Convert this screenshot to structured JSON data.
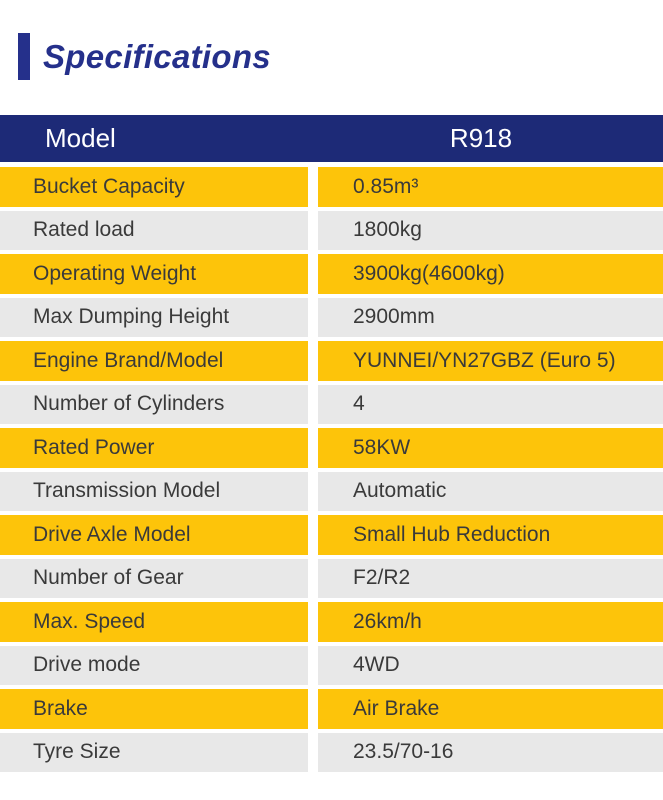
{
  "section_title": {
    "text": "Specifications",
    "accent_color": "#25308B"
  },
  "table": {
    "header": {
      "model_label": "Model",
      "model_value": "R918",
      "bg": "#1D2A77",
      "text_color": "#FFFFFF"
    },
    "row_colors": {
      "odd": "#FDC40A",
      "even": "#E8E8E8"
    },
    "body_text_color": "#3A3A3A",
    "rows": [
      {
        "label": "Bucket Capacity",
        "value": "0.85m³"
      },
      {
        "label": "Rated load",
        "value": "1800kg"
      },
      {
        "label": "Operating Weight",
        "value": "3900kg(4600kg)"
      },
      {
        "label": "Max Dumping Height",
        "value": "2900mm"
      },
      {
        "label": "Engine Brand/Model",
        "value": "YUNNEI/YN27GBZ (Euro 5)"
      },
      {
        "label": "Number of Cylinders",
        "value": "4"
      },
      {
        "label": "Rated Power",
        "value": "58KW"
      },
      {
        "label": "Transmission Model",
        "value": "Automatic"
      },
      {
        "label": "Drive Axle Model",
        "value": "Small Hub Reduction"
      },
      {
        "label": "Number of Gear",
        "value": "F2/R2"
      },
      {
        "label": "Max. Speed",
        "value": "26km/h"
      },
      {
        "label": "Drive mode",
        "value": "4WD"
      },
      {
        "label": "Brake",
        "value": "Air Brake"
      },
      {
        "label": "Tyre Size",
        "value": "23.5/70-16"
      }
    ]
  }
}
